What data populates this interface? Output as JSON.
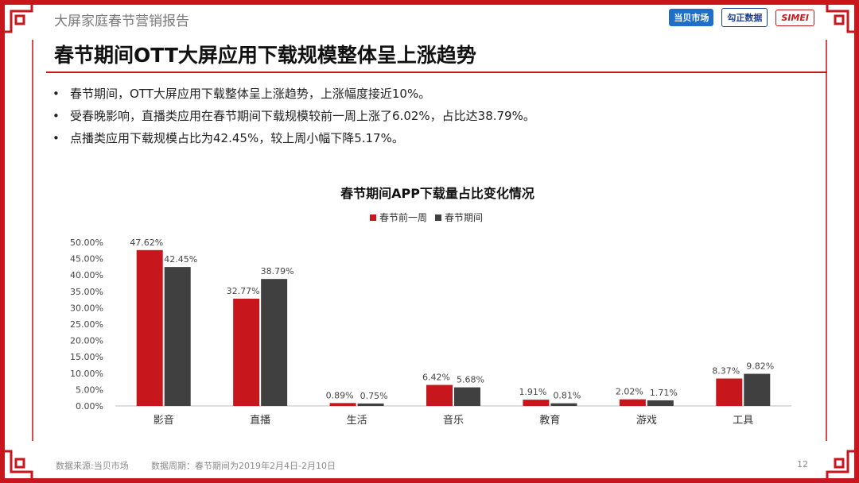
{
  "header": {
    "report_title": "大屏家庭春节营销报告"
  },
  "logos": {
    "dangbei": "当贝市场",
    "gozen": "勾正数据",
    "simei": "SIMEI"
  },
  "main_title": "春节期间OTT大屏应用下载规模整体呈上涨趋势",
  "bullets": [
    "春节期间，OTT大屏应用下载整体呈上涨趋势，上涨幅度接近10%。",
    "受春晚影响，直播类应用在春节期间下载规模较前一周上涨了6.02%，占比达38.79%。",
    "点播类应用下载规模占比为42.45%，较上周小幅下降5.17%。"
  ],
  "chart_data": {
    "type": "bar",
    "title": "春节期间APP下载量占比变化情况",
    "categories": [
      "影音",
      "直播",
      "生活",
      "音乐",
      "教育",
      "游戏",
      "工具"
    ],
    "series": [
      {
        "name": "春节前一周",
        "color": "#c8161d",
        "values": [
          47.62,
          32.77,
          0.89,
          6.42,
          1.91,
          2.02,
          8.37
        ]
      },
      {
        "name": "春节期间",
        "color": "#404040",
        "values": [
          42.45,
          38.79,
          0.75,
          5.68,
          0.81,
          1.71,
          9.82
        ]
      }
    ],
    "ylim": [
      0,
      50
    ],
    "yticks": [
      "0.00%",
      "5.00%",
      "10.00%",
      "15.00%",
      "20.00%",
      "25.00%",
      "30.00%",
      "35.00%",
      "40.00%",
      "45.00%",
      "50.00%"
    ],
    "legend_position": "top-center",
    "grid": false
  },
  "footer": {
    "source": "数据来源:当贝市场",
    "period": "数据周期：春节期间为2019年2月4日-2月10日",
    "page": "12"
  }
}
